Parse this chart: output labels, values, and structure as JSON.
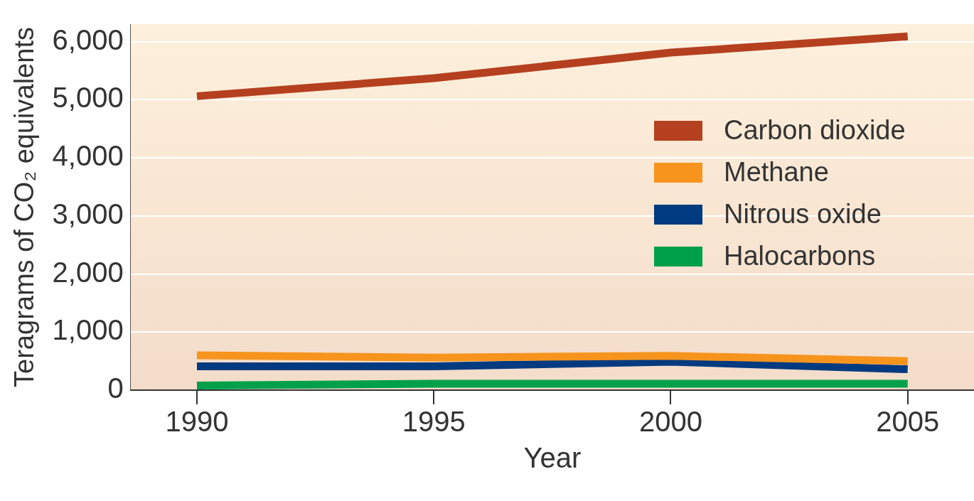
{
  "chart_data": {
    "type": "line",
    "xlabel": "Year",
    "ylabel": "Teragrams of CO₂ equivalents",
    "x": [
      1990,
      1995,
      2000,
      2005
    ],
    "series": [
      {
        "name": "Carbon dioxide",
        "color": "#b5401f",
        "values": [
          5060,
          5370,
          5810,
          6090
        ]
      },
      {
        "name": "Methane",
        "color": "#f7941d",
        "values": [
          600,
          560,
          590,
          500
        ]
      },
      {
        "name": "Nitrous oxide",
        "color": "#003a80",
        "values": [
          410,
          410,
          490,
          360
        ]
      },
      {
        "name": "Halocarbons",
        "color": "#00a04a",
        "values": [
          80,
          110,
          110,
          110
        ]
      }
    ],
    "xlim": [
      1988.6,
      2006.4
    ],
    "xticks": [
      1990,
      1995,
      2000,
      2005
    ],
    "ylim": [
      0,
      6300
    ],
    "yticks": [
      0,
      {
        "value": 1000,
        "label": "1,000"
      },
      {
        "value": 2000,
        "label": "2,000"
      },
      {
        "value": 3000,
        "label": "3,000"
      },
      {
        "value": 4000,
        "label": "4,000"
      },
      {
        "value": 5000,
        "label": "5,000"
      },
      {
        "value": 6000,
        "label": "6,000"
      }
    ],
    "grid": "y",
    "legend": "right",
    "marker": "none",
    "line_style": "solid"
  }
}
